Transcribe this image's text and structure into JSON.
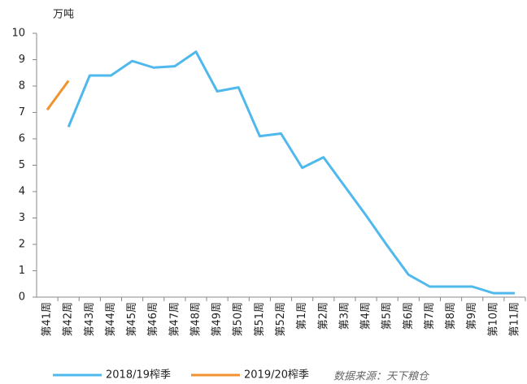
{
  "chart_data": {
    "type": "line",
    "y_label": "万吨",
    "categories": [
      "第41周",
      "第42周",
      "第43周",
      "第44周",
      "第45周",
      "第46周",
      "第47周",
      "第48周",
      "第49周",
      "第50周",
      "第51周",
      "第52周",
      "第1周",
      "第2周",
      "第3周",
      "第4周",
      "第5周",
      "第6周",
      "第7周",
      "第8周",
      "第9周",
      "第10周",
      "第11周"
    ],
    "series": [
      {
        "name": "2018/19榨季",
        "color": "#4fb8ec",
        "values": [
          null,
          6.45,
          8.4,
          8.4,
          8.95,
          8.7,
          8.75,
          9.3,
          7.8,
          7.95,
          6.1,
          6.2,
          4.9,
          5.3,
          4.2,
          3.1,
          1.95,
          0.85,
          0.4,
          0.4,
          0.4,
          0.15,
          0.15
        ]
      },
      {
        "name": "2019/20榨季",
        "color": "#f0922e",
        "values": [
          7.1,
          8.2,
          null,
          null,
          null,
          null,
          null,
          null,
          null,
          null,
          null,
          null,
          null,
          null,
          null,
          null,
          null,
          null,
          null,
          null,
          null,
          null,
          null
        ]
      }
    ],
    "ylim": [
      0,
      10
    ],
    "yticks": [
      0,
      1,
      2,
      3,
      4,
      5,
      6,
      7,
      8,
      9,
      10
    ],
    "grid": false,
    "source": "数据来源：天下粮仓"
  }
}
